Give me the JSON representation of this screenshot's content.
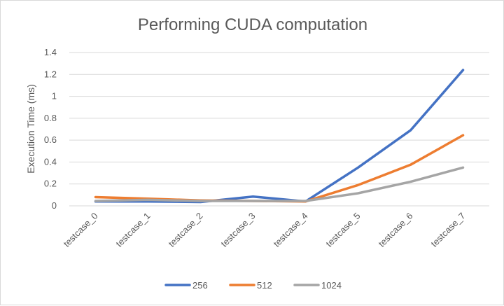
{
  "chart_data": {
    "type": "line",
    "title": "Performing CUDA computation",
    "xlabel": "",
    "ylabel": "Execution Time (ms)",
    "ylim": [
      0,
      1.4
    ],
    "yticks": [
      "0",
      "0.2",
      "0.4",
      "0.6",
      "0.8",
      "1",
      "1.2",
      "1.4"
    ],
    "categories": [
      "testcase_0",
      "testcase_1",
      "testcase_2",
      "testcase_3",
      "testcase_4",
      "testcase_5",
      "testcase_6",
      "testcase_7"
    ],
    "series": [
      {
        "name": "256",
        "color": "#4472c4",
        "values": [
          0.04,
          0.04,
          0.035,
          0.085,
          0.04,
          0.35,
          0.69,
          1.24
        ]
      },
      {
        "name": "512",
        "color": "#ed7d31",
        "values": [
          0.08,
          0.065,
          0.05,
          0.045,
          0.04,
          0.19,
          0.375,
          0.645
        ]
      },
      {
        "name": "1024",
        "color": "#a5a5a5",
        "values": [
          0.045,
          0.055,
          0.045,
          0.045,
          0.045,
          0.115,
          0.22,
          0.35
        ]
      }
    ],
    "grid": true,
    "legend_position": "bottom"
  }
}
